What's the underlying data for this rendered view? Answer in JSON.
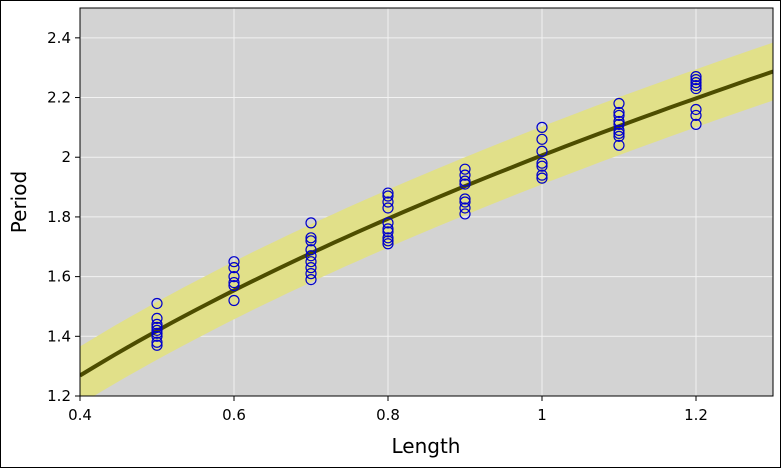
{
  "chart_data": {
    "type": "scatter",
    "title": "",
    "xlabel": "Length",
    "ylabel": "Period",
    "xlim": [
      0.4,
      1.3
    ],
    "ylim": [
      1.2,
      2.5
    ],
    "x_ticks": [
      0.4,
      0.6,
      0.8,
      1.0,
      1.2
    ],
    "x_tick_labels": [
      "0.4",
      "0.6",
      "0.8",
      "1",
      "1.2"
    ],
    "y_ticks": [
      1.2,
      1.4,
      1.6,
      1.8,
      2.0,
      2.2,
      2.4
    ],
    "y_tick_labels": [
      "1.2",
      "1.4",
      "1.6",
      "1.8",
      "2",
      "2.2",
      "2.4"
    ],
    "grid": true,
    "colors": {
      "plot_background": "#d3d3d3",
      "grid": "#f2f2f2",
      "points": "#0000cc",
      "fit_line": "#4d4d00",
      "band": "#e1e089"
    },
    "fit": {
      "model": "power",
      "coefficient": 2.006,
      "exponent": 0.5,
      "x_range": [
        0.4,
        1.3
      ],
      "band_halfwidth": 0.097
    },
    "series": [
      {
        "points": [
          [
            0.5,
            1.51
          ],
          [
            0.5,
            1.46
          ],
          [
            0.5,
            1.44
          ],
          [
            0.5,
            1.43
          ],
          [
            0.5,
            1.42
          ],
          [
            0.5,
            1.41
          ],
          [
            0.5,
            1.4
          ],
          [
            0.5,
            1.38
          ],
          [
            0.5,
            1.37
          ],
          [
            0.6,
            1.65
          ],
          [
            0.6,
            1.63
          ],
          [
            0.6,
            1.6
          ],
          [
            0.6,
            1.58
          ],
          [
            0.6,
            1.57
          ],
          [
            0.6,
            1.52
          ],
          [
            0.7,
            1.78
          ],
          [
            0.7,
            1.73
          ],
          [
            0.7,
            1.72
          ],
          [
            0.7,
            1.69
          ],
          [
            0.7,
            1.67
          ],
          [
            0.7,
            1.65
          ],
          [
            0.7,
            1.63
          ],
          [
            0.7,
            1.61
          ],
          [
            0.7,
            1.59
          ],
          [
            0.8,
            1.88
          ],
          [
            0.8,
            1.87
          ],
          [
            0.8,
            1.85
          ],
          [
            0.8,
            1.83
          ],
          [
            0.8,
            1.78
          ],
          [
            0.8,
            1.76
          ],
          [
            0.8,
            1.75
          ],
          [
            0.8,
            1.73
          ],
          [
            0.8,
            1.72
          ],
          [
            0.8,
            1.71
          ],
          [
            0.9,
            1.96
          ],
          [
            0.9,
            1.94
          ],
          [
            0.9,
            1.92
          ],
          [
            0.9,
            1.91
          ],
          [
            0.9,
            1.86
          ],
          [
            0.9,
            1.85
          ],
          [
            0.9,
            1.83
          ],
          [
            0.9,
            1.81
          ],
          [
            1.0,
            2.1
          ],
          [
            1.0,
            2.06
          ],
          [
            1.0,
            2.02
          ],
          [
            1.0,
            1.98
          ],
          [
            1.0,
            1.97
          ],
          [
            1.0,
            1.94
          ],
          [
            1.0,
            1.93
          ],
          [
            1.1,
            2.18
          ],
          [
            1.1,
            2.15
          ],
          [
            1.1,
            2.14
          ],
          [
            1.1,
            2.12
          ],
          [
            1.1,
            2.11
          ],
          [
            1.1,
            2.09
          ],
          [
            1.1,
            2.08
          ],
          [
            1.1,
            2.07
          ],
          [
            1.1,
            2.04
          ],
          [
            1.2,
            2.27
          ],
          [
            1.2,
            2.26
          ],
          [
            1.2,
            2.25
          ],
          [
            1.2,
            2.24
          ],
          [
            1.2,
            2.23
          ],
          [
            1.2,
            2.16
          ],
          [
            1.2,
            2.14
          ],
          [
            1.2,
            2.11
          ]
        ]
      }
    ]
  }
}
